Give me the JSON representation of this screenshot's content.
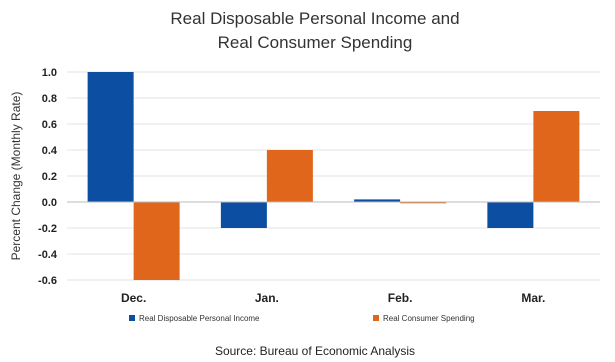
{
  "chart_data": {
    "type": "bar",
    "title_lines": [
      "Real Disposable Personal Income and",
      "Real Consumer Spending"
    ],
    "ylabel": "Percent Change (Monthly Rate)",
    "categories": [
      "Dec.",
      "Jan.",
      "Feb.",
      "Mar."
    ],
    "series": [
      {
        "name": "Real Disposable Personal Income",
        "values": [
          1.0,
          -0.2,
          0.02,
          -0.2
        ],
        "color": "#0b4ea2"
      },
      {
        "name": "Real Consumer Spending",
        "values": [
          -0.6,
          0.4,
          -0.01,
          0.7
        ],
        "color": "#e0661b"
      }
    ],
    "ylim": [
      -0.6,
      1.0
    ],
    "yticks": [
      1.0,
      0.8,
      0.6,
      0.4,
      0.2,
      0.0,
      -0.2,
      -0.4,
      -0.6
    ],
    "ytick_labels": [
      "1.0",
      "0.8",
      "0.6",
      "0.4",
      "0.2",
      "0.0",
      "-0.2",
      "-0.4",
      "-0.6"
    ],
    "grid": true,
    "legend_position": "bottom",
    "source": "Source:  Bureau of Economic Analysis"
  }
}
